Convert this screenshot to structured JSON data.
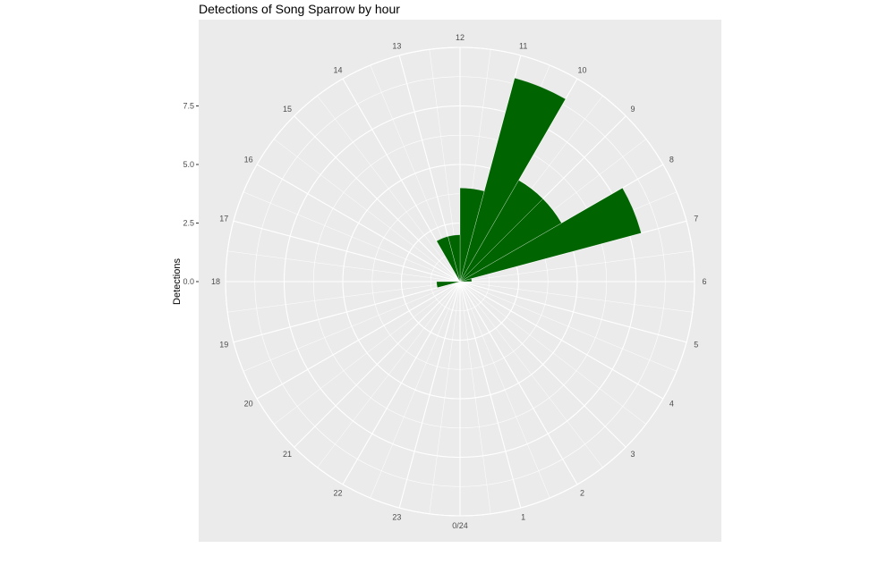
{
  "chart_data": {
    "type": "bar",
    "coordinate_system": "polar",
    "title": "Detections of Song Sparrow by hour",
    "xlabel": "",
    "ylabel": "Detections",
    "categories": [
      "0/24",
      "1",
      "2",
      "3",
      "4",
      "5",
      "6",
      "7",
      "8",
      "9",
      "10",
      "11",
      "12",
      "13",
      "14",
      "15",
      "16",
      "17",
      "18",
      "19",
      "20",
      "21",
      "22",
      "23"
    ],
    "values": [
      0,
      0,
      0,
      0,
      0,
      0,
      0.5,
      8,
      5,
      5,
      9,
      4,
      2,
      2,
      0,
      0,
      0,
      0,
      1,
      0,
      0,
      0,
      0,
      0
    ],
    "ylim": [
      0,
      10
    ],
    "y_ticks": [
      0,
      2.5,
      5,
      7.5
    ],
    "y_tick_labels": [
      "0.0",
      "2.5",
      "5.0",
      "7.5"
    ],
    "bar_color": "#006400",
    "panel_background": "#ebebeb",
    "grid": true,
    "legend": "none"
  }
}
